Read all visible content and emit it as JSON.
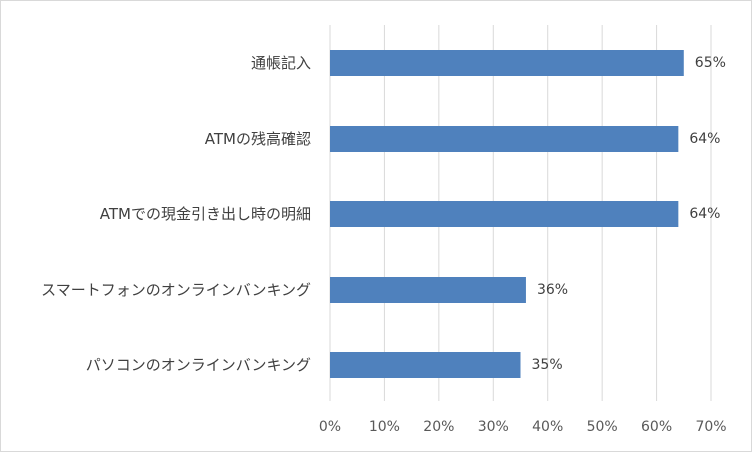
{
  "chart_data": {
    "type": "bar",
    "orientation": "horizontal",
    "categories": [
      "通帳記入",
      "ATMの残高確認",
      "ATMでの現金引き出し時の明細",
      "スマートフォンのオンラインバンキング",
      "パソコンのオンラインバンキング"
    ],
    "values": [
      65,
      64,
      64,
      36,
      35
    ],
    "data_labels": [
      "65%",
      "64%",
      "64%",
      "36%",
      "35%"
    ],
    "x_ticks": [
      0,
      10,
      20,
      30,
      40,
      50,
      60,
      70
    ],
    "x_tick_labels": [
      "0%",
      "10%",
      "20%",
      "30%",
      "40%",
      "50%",
      "60%",
      "70%"
    ],
    "xlim": [
      0,
      70
    ],
    "grid": "vertical",
    "legend": "none",
    "bar_color": "#4f81bd",
    "gridline_color": "#d9d9d9"
  }
}
